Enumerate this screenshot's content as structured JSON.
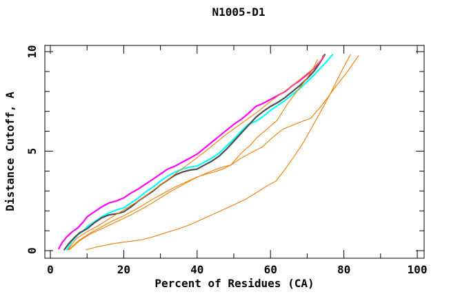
{
  "page": {
    "background": "#ffffff",
    "axis_color": "#000000"
  },
  "chart_data": {
    "type": "line",
    "title": "N1005-D1",
    "xlabel": "Percent of Residues (CA)",
    "ylabel": "Distance Cutoff, A",
    "xlim": [
      0,
      102
    ],
    "ylim": [
      0,
      10.3
    ],
    "grid": false,
    "legend": "none",
    "x_major_ticks": [
      0,
      20,
      40,
      60,
      80,
      100
    ],
    "x_minor_ticks": [
      10,
      30,
      50,
      70,
      90
    ],
    "y_major_ticks": [
      0,
      5,
      10
    ],
    "y_minor_ticks": [
      1,
      2,
      3,
      4,
      6,
      7,
      8,
      9
    ],
    "series": [
      {
        "name": "cyan-bold",
        "color": "#00ffff",
        "width": 2.2,
        "points": [
          [
            4.5,
            0.05
          ],
          [
            6,
            0.5
          ],
          [
            7.5,
            0.8
          ],
          [
            9,
            1.0
          ],
          [
            10,
            1.2
          ],
          [
            12,
            1.45
          ],
          [
            14,
            1.7
          ],
          [
            16,
            1.9
          ],
          [
            18,
            2.05
          ],
          [
            20,
            2.15
          ],
          [
            22,
            2.4
          ],
          [
            24,
            2.65
          ],
          [
            26,
            2.95
          ],
          [
            28,
            3.2
          ],
          [
            30,
            3.5
          ],
          [
            32,
            3.75
          ],
          [
            34,
            3.95
          ],
          [
            36,
            4.1
          ],
          [
            38,
            4.2
          ],
          [
            40,
            4.25
          ],
          [
            42,
            4.45
          ],
          [
            44,
            4.65
          ],
          [
            46,
            4.9
          ],
          [
            48,
            5.25
          ],
          [
            50,
            5.6
          ],
          [
            52,
            6.0
          ],
          [
            54,
            6.35
          ],
          [
            56,
            6.5
          ],
          [
            58,
            6.75
          ],
          [
            60,
            7.05
          ],
          [
            62,
            7.3
          ],
          [
            64,
            7.55
          ],
          [
            66,
            7.85
          ],
          [
            68,
            8.15
          ],
          [
            70,
            8.5
          ],
          [
            72,
            8.85
          ],
          [
            74,
            9.25
          ],
          [
            76,
            9.65
          ],
          [
            76.9,
            9.85
          ]
        ]
      },
      {
        "name": "gray-bold",
        "color": "#4d4d4d",
        "width": 2.2,
        "points": [
          [
            3.8,
            0.05
          ],
          [
            5,
            0.35
          ],
          [
            6.5,
            0.65
          ],
          [
            8,
            0.9
          ],
          [
            10,
            1.1
          ],
          [
            12,
            1.4
          ],
          [
            14,
            1.65
          ],
          [
            16,
            1.8
          ],
          [
            18,
            1.85
          ],
          [
            20,
            1.95
          ],
          [
            22,
            2.2
          ],
          [
            24,
            2.5
          ],
          [
            26,
            2.75
          ],
          [
            28,
            3.0
          ],
          [
            30,
            3.3
          ],
          [
            32,
            3.55
          ],
          [
            34,
            3.8
          ],
          [
            36,
            3.95
          ],
          [
            38,
            4.05
          ],
          [
            40,
            4.1
          ],
          [
            42,
            4.3
          ],
          [
            44,
            4.5
          ],
          [
            46,
            4.75
          ],
          [
            48,
            5.1
          ],
          [
            50,
            5.5
          ],
          [
            52,
            5.9
          ],
          [
            54,
            6.3
          ],
          [
            56,
            6.7
          ],
          [
            58,
            7.0
          ],
          [
            60,
            7.25
          ],
          [
            62,
            7.45
          ],
          [
            64,
            7.7
          ],
          [
            66,
            8.0
          ],
          [
            68,
            8.3
          ],
          [
            70,
            8.65
          ],
          [
            72,
            9.05
          ],
          [
            73.5,
            9.45
          ],
          [
            74.8,
            9.85
          ]
        ]
      },
      {
        "name": "magenta-bold",
        "color": "#ff00ff",
        "width": 2.2,
        "points": [
          [
            2.3,
            0.1
          ],
          [
            3.2,
            0.4
          ],
          [
            4.5,
            0.7
          ],
          [
            6,
            0.95
          ],
          [
            7.5,
            1.15
          ],
          [
            9,
            1.45
          ],
          [
            10,
            1.7
          ],
          [
            12,
            1.95
          ],
          [
            14,
            2.2
          ],
          [
            16,
            2.4
          ],
          [
            18,
            2.5
          ],
          [
            20,
            2.65
          ],
          [
            22,
            2.9
          ],
          [
            24,
            3.1
          ],
          [
            26,
            3.35
          ],
          [
            28,
            3.6
          ],
          [
            30,
            3.85
          ],
          [
            32,
            4.1
          ],
          [
            34,
            4.25
          ],
          [
            36,
            4.45
          ],
          [
            38,
            4.65
          ],
          [
            40,
            4.85
          ],
          [
            42,
            5.15
          ],
          [
            44,
            5.45
          ],
          [
            46,
            5.75
          ],
          [
            48,
            6.05
          ],
          [
            50,
            6.35
          ],
          [
            52,
            6.6
          ],
          [
            54,
            6.9
          ],
          [
            56,
            7.25
          ],
          [
            58,
            7.4
          ],
          [
            60,
            7.6
          ],
          [
            62,
            7.8
          ],
          [
            64,
            8.0
          ],
          [
            66,
            8.3
          ],
          [
            68,
            8.55
          ],
          [
            70,
            8.85
          ],
          [
            71.5,
            9.1
          ],
          [
            73,
            9.4
          ],
          [
            74,
            9.6
          ],
          [
            74.4,
            9.8
          ]
        ]
      },
      {
        "name": "orange-thin-1",
        "color": "#ee8512",
        "width": 1.2,
        "points": [
          [
            4.8,
            0.05
          ],
          [
            7,
            0.6
          ],
          [
            10,
            0.95
          ],
          [
            13,
            1.25
          ],
          [
            16,
            1.6
          ],
          [
            20,
            2.05
          ],
          [
            24,
            2.5
          ],
          [
            27,
            2.9
          ],
          [
            30,
            3.3
          ],
          [
            34,
            3.85
          ],
          [
            38,
            4.4
          ],
          [
            42,
            4.95
          ],
          [
            45,
            5.4
          ],
          [
            48,
            5.85
          ],
          [
            51,
            6.25
          ],
          [
            54,
            6.65
          ],
          [
            57,
            7.05
          ],
          [
            60,
            7.5
          ],
          [
            63,
            7.9
          ],
          [
            66,
            8.3
          ],
          [
            69,
            8.75
          ],
          [
            71,
            9.05
          ],
          [
            73,
            9.4
          ],
          [
            74.6,
            9.8
          ]
        ]
      },
      {
        "name": "orange-thin-2",
        "color": "#ee8512",
        "width": 1.2,
        "points": [
          [
            5.2,
            0.05
          ],
          [
            8,
            0.5
          ],
          [
            11,
            0.85
          ],
          [
            14,
            1.1
          ],
          [
            18,
            1.45
          ],
          [
            22,
            1.8
          ],
          [
            26,
            2.2
          ],
          [
            30,
            2.65
          ],
          [
            33,
            3.0
          ],
          [
            36,
            3.3
          ],
          [
            39,
            3.6
          ],
          [
            42,
            3.85
          ],
          [
            44.6,
            4.05
          ],
          [
            47,
            4.2
          ],
          [
            49.2,
            4.3
          ],
          [
            52,
            4.65
          ],
          [
            55,
            4.95
          ],
          [
            57.7,
            5.2
          ],
          [
            60,
            5.6
          ],
          [
            63.3,
            6.1
          ],
          [
            66,
            6.3
          ],
          [
            68,
            6.45
          ],
          [
            70.9,
            6.65
          ],
          [
            74,
            7.3
          ],
          [
            78,
            8.3
          ],
          [
            81,
            9.0
          ],
          [
            84,
            9.8
          ]
        ]
      },
      {
        "name": "orange-thin-3",
        "color": "#ee8512",
        "width": 1.2,
        "points": [
          [
            5,
            0.05
          ],
          [
            8,
            0.55
          ],
          [
            11,
            0.9
          ],
          [
            14,
            1.2
          ],
          [
            17,
            1.5
          ],
          [
            20,
            1.75
          ],
          [
            24,
            2.15
          ],
          [
            28,
            2.6
          ],
          [
            31,
            2.9
          ],
          [
            34,
            3.2
          ],
          [
            37,
            3.45
          ],
          [
            40,
            3.7
          ],
          [
            42.5,
            3.85
          ],
          [
            44.6,
            3.95
          ],
          [
            47,
            4.1
          ],
          [
            49.2,
            4.3
          ],
          [
            52,
            4.9
          ],
          [
            54.5,
            5.3
          ],
          [
            56.4,
            5.7
          ],
          [
            59,
            6.1
          ],
          [
            61.8,
            6.55
          ],
          [
            64.7,
            7.4
          ],
          [
            67,
            7.95
          ],
          [
            69.5,
            8.55
          ],
          [
            71.5,
            9.1
          ],
          [
            72.8,
            9.6
          ]
        ]
      },
      {
        "name": "orange-thin-4",
        "color": "#ee8512",
        "width": 1.2,
        "points": [
          [
            9.8,
            0.05
          ],
          [
            13,
            0.2
          ],
          [
            17,
            0.35
          ],
          [
            21,
            0.45
          ],
          [
            25,
            0.55
          ],
          [
            28,
            0.7
          ],
          [
            31.4,
            0.9
          ],
          [
            35,
            1.1
          ],
          [
            38,
            1.3
          ],
          [
            41,
            1.55
          ],
          [
            44,
            1.8
          ],
          [
            47,
            2.05
          ],
          [
            50,
            2.3
          ],
          [
            53.4,
            2.6
          ],
          [
            56,
            2.9
          ],
          [
            59,
            3.25
          ],
          [
            61.5,
            3.5
          ],
          [
            64,
            4.1
          ],
          [
            66.5,
            4.75
          ],
          [
            69,
            5.45
          ],
          [
            71,
            6.1
          ],
          [
            74.3,
            7.2
          ],
          [
            76.5,
            7.95
          ],
          [
            79.3,
            9.0
          ],
          [
            81.8,
            9.85
          ]
        ]
      }
    ]
  }
}
